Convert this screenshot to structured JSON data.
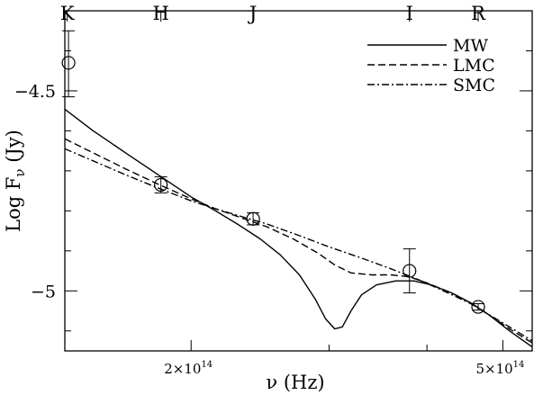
{
  "chart_data": {
    "type": "line",
    "xlabel": "ν (Hz)",
    "ylabel": "Log F_ν (Jy)",
    "x_scale": "log",
    "xlim": [
      138000000000000.0,
      545000000000000.0
    ],
    "ylim": [
      -5.15,
      -4.3
    ],
    "x_ticks": [
      {
        "value": 200000000000000.0,
        "label": "2×10",
        "exp": "14"
      },
      {
        "value": 500000000000000.0,
        "label": "5×10",
        "exp": "14"
      }
    ],
    "y_ticks": [
      {
        "value": -4.5,
        "label": "−4.5"
      },
      {
        "value": -5.0,
        "label": "−5"
      }
    ],
    "band_ticks": [
      {
        "value": 139000000000000.0,
        "label": "K"
      },
      {
        "value": 183000000000000.0,
        "label": "H"
      },
      {
        "value": 240000000000000.0,
        "label": "J"
      },
      {
        "value": 380000000000000.0,
        "label": "I"
      },
      {
        "value": 465000000000000.0,
        "label": "R"
      }
    ],
    "legend_position": "top-right",
    "series": [
      {
        "name": "MW",
        "dash": "solid",
        "points": [
          [
            138000000000000.0,
            -4.546
          ],
          [
            150000000000000.0,
            -4.6
          ],
          [
            165000000000000.0,
            -4.655
          ],
          [
            180000000000000.0,
            -4.705
          ],
          [
            200000000000000.0,
            -4.765
          ],
          [
            215000000000000.0,
            -4.8
          ],
          [
            230000000000000.0,
            -4.835
          ],
          [
            245000000000000.0,
            -4.87
          ],
          [
            260000000000000.0,
            -4.91
          ],
          [
            275000000000000.0,
            -4.96
          ],
          [
            288000000000000.0,
            -5.02
          ],
          [
            297000000000000.0,
            -5.07
          ],
          [
            305000000000000.0,
            -5.095
          ],
          [
            312000000000000.0,
            -5.09
          ],
          [
            320000000000000.0,
            -5.05
          ],
          [
            330000000000000.0,
            -5.01
          ],
          [
            345000000000000.0,
            -4.985
          ],
          [
            365000000000000.0,
            -4.975
          ],
          [
            385000000000000.0,
            -4.975
          ],
          [
            405000000000000.0,
            -4.985
          ],
          [
            430000000000000.0,
            -5.005
          ],
          [
            455000000000000.0,
            -5.03
          ],
          [
            480000000000000.0,
            -5.06
          ],
          [
            510000000000000.0,
            -5.1
          ],
          [
            545000000000000.0,
            -5.14
          ]
        ]
      },
      {
        "name": "LMC",
        "dash": "dashed",
        "points": [
          [
            138000000000000.0,
            -4.62
          ],
          [
            150000000000000.0,
            -4.655
          ],
          [
            165000000000000.0,
            -4.695
          ],
          [
            180000000000000.0,
            -4.73
          ],
          [
            200000000000000.0,
            -4.77
          ],
          [
            215000000000000.0,
            -4.795
          ],
          [
            230000000000000.0,
            -4.815
          ],
          [
            250000000000000.0,
            -4.84
          ],
          [
            270000000000000.0,
            -4.87
          ],
          [
            290000000000000.0,
            -4.905
          ],
          [
            305000000000000.0,
            -4.935
          ],
          [
            320000000000000.0,
            -4.955
          ],
          [
            340000000000000.0,
            -4.96
          ],
          [
            360000000000000.0,
            -4.96
          ],
          [
            380000000000000.0,
            -4.965
          ],
          [
            400000000000000.0,
            -4.98
          ],
          [
            430000000000000.0,
            -5.005
          ],
          [
            455000000000000.0,
            -5.03
          ],
          [
            480000000000000.0,
            -5.06
          ],
          [
            510000000000000.0,
            -5.095
          ],
          [
            545000000000000.0,
            -5.13
          ]
        ]
      },
      {
        "name": "SMC",
        "dash": "dashdot",
        "points": [
          [
            138000000000000.0,
            -4.645
          ],
          [
            150000000000000.0,
            -4.675
          ],
          [
            165000000000000.0,
            -4.71
          ],
          [
            180000000000000.0,
            -4.74
          ],
          [
            200000000000000.0,
            -4.775
          ],
          [
            215000000000000.0,
            -4.795
          ],
          [
            230000000000000.0,
            -4.812
          ],
          [
            250000000000000.0,
            -4.833
          ],
          [
            275000000000000.0,
            -4.862
          ],
          [
            300000000000000.0,
            -4.89
          ],
          [
            330000000000000.0,
            -4.918
          ],
          [
            360000000000000.0,
            -4.945
          ],
          [
            390000000000000.0,
            -4.972
          ],
          [
            420000000000000.0,
            -5.0
          ],
          [
            455000000000000.0,
            -5.032
          ],
          [
            490000000000000.0,
            -5.07
          ],
          [
            520000000000000.0,
            -5.1
          ],
          [
            545000000000000.0,
            -5.125
          ]
        ]
      }
    ],
    "observations": [
      {
        "band": "K",
        "x": 139500000000000.0,
        "y": -4.43,
        "err_low": -4.515,
        "err_high": -4.35
      },
      {
        "band": "H",
        "x": 183000000000000.0,
        "y": -4.735,
        "err_low": -4.755,
        "err_high": -4.715
      },
      {
        "band": "J",
        "x": 240000000000000.0,
        "y": -4.82,
        "err_low": -4.835,
        "err_high": -4.805
      },
      {
        "band": "I",
        "x": 380000000000000.0,
        "y": -4.95,
        "err_low": -5.005,
        "err_high": -4.895
      },
      {
        "band": "R",
        "x": 465000000000000.0,
        "y": -5.04,
        "err_low": -5.048,
        "err_high": -5.032
      }
    ]
  }
}
